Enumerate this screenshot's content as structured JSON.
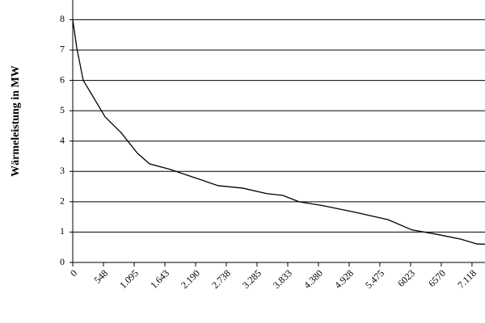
{
  "chart_data": {
    "type": "line",
    "y_label": "Wärmeleistung in MW",
    "x": [
      0,
      72,
      187,
      360,
      576,
      865,
      1153,
      1369,
      1729,
      2162,
      2594,
      3026,
      3458,
      3746,
      4035,
      4467,
      5044,
      5620,
      6052,
      6484,
      6917,
      7205,
      7349
    ],
    "series": [
      {
        "name": "Wärmeleistung",
        "color": "#000000",
        "values": [
          8,
          7.07,
          6,
          5.47,
          4.8,
          4.27,
          3.6,
          3.25,
          3.07,
          2.8,
          2.53,
          2.45,
          2.27,
          2.21,
          2,
          1.87,
          1.65,
          1.41,
          1.07,
          0.93,
          0.77,
          0.61,
          0.6
        ]
      }
    ],
    "xlim": [
      0,
      7350
    ],
    "ylim": [
      0,
      8.65
    ],
    "xticks": [
      0,
      548,
      {
        "value": 1095,
        "label": "1.095"
      },
      {
        "value": 1643,
        "label": "1.643"
      },
      {
        "value": 2190,
        "label": "2.190"
      },
      {
        "value": 2738,
        "label": "2.738"
      },
      {
        "value": 3285,
        "label": "3.285"
      },
      {
        "value": 3833,
        "label": "3.833"
      },
      {
        "value": 4380,
        "label": "4.380"
      },
      {
        "value": 4928,
        "label": "4.928"
      },
      {
        "value": 5475,
        "label": "5.475"
      },
      6023,
      6570,
      {
        "value": 7118,
        "label": "7.118"
      }
    ],
    "yticks": [
      0,
      1,
      2,
      3,
      4,
      5,
      6,
      7,
      8
    ],
    "grid": true
  }
}
